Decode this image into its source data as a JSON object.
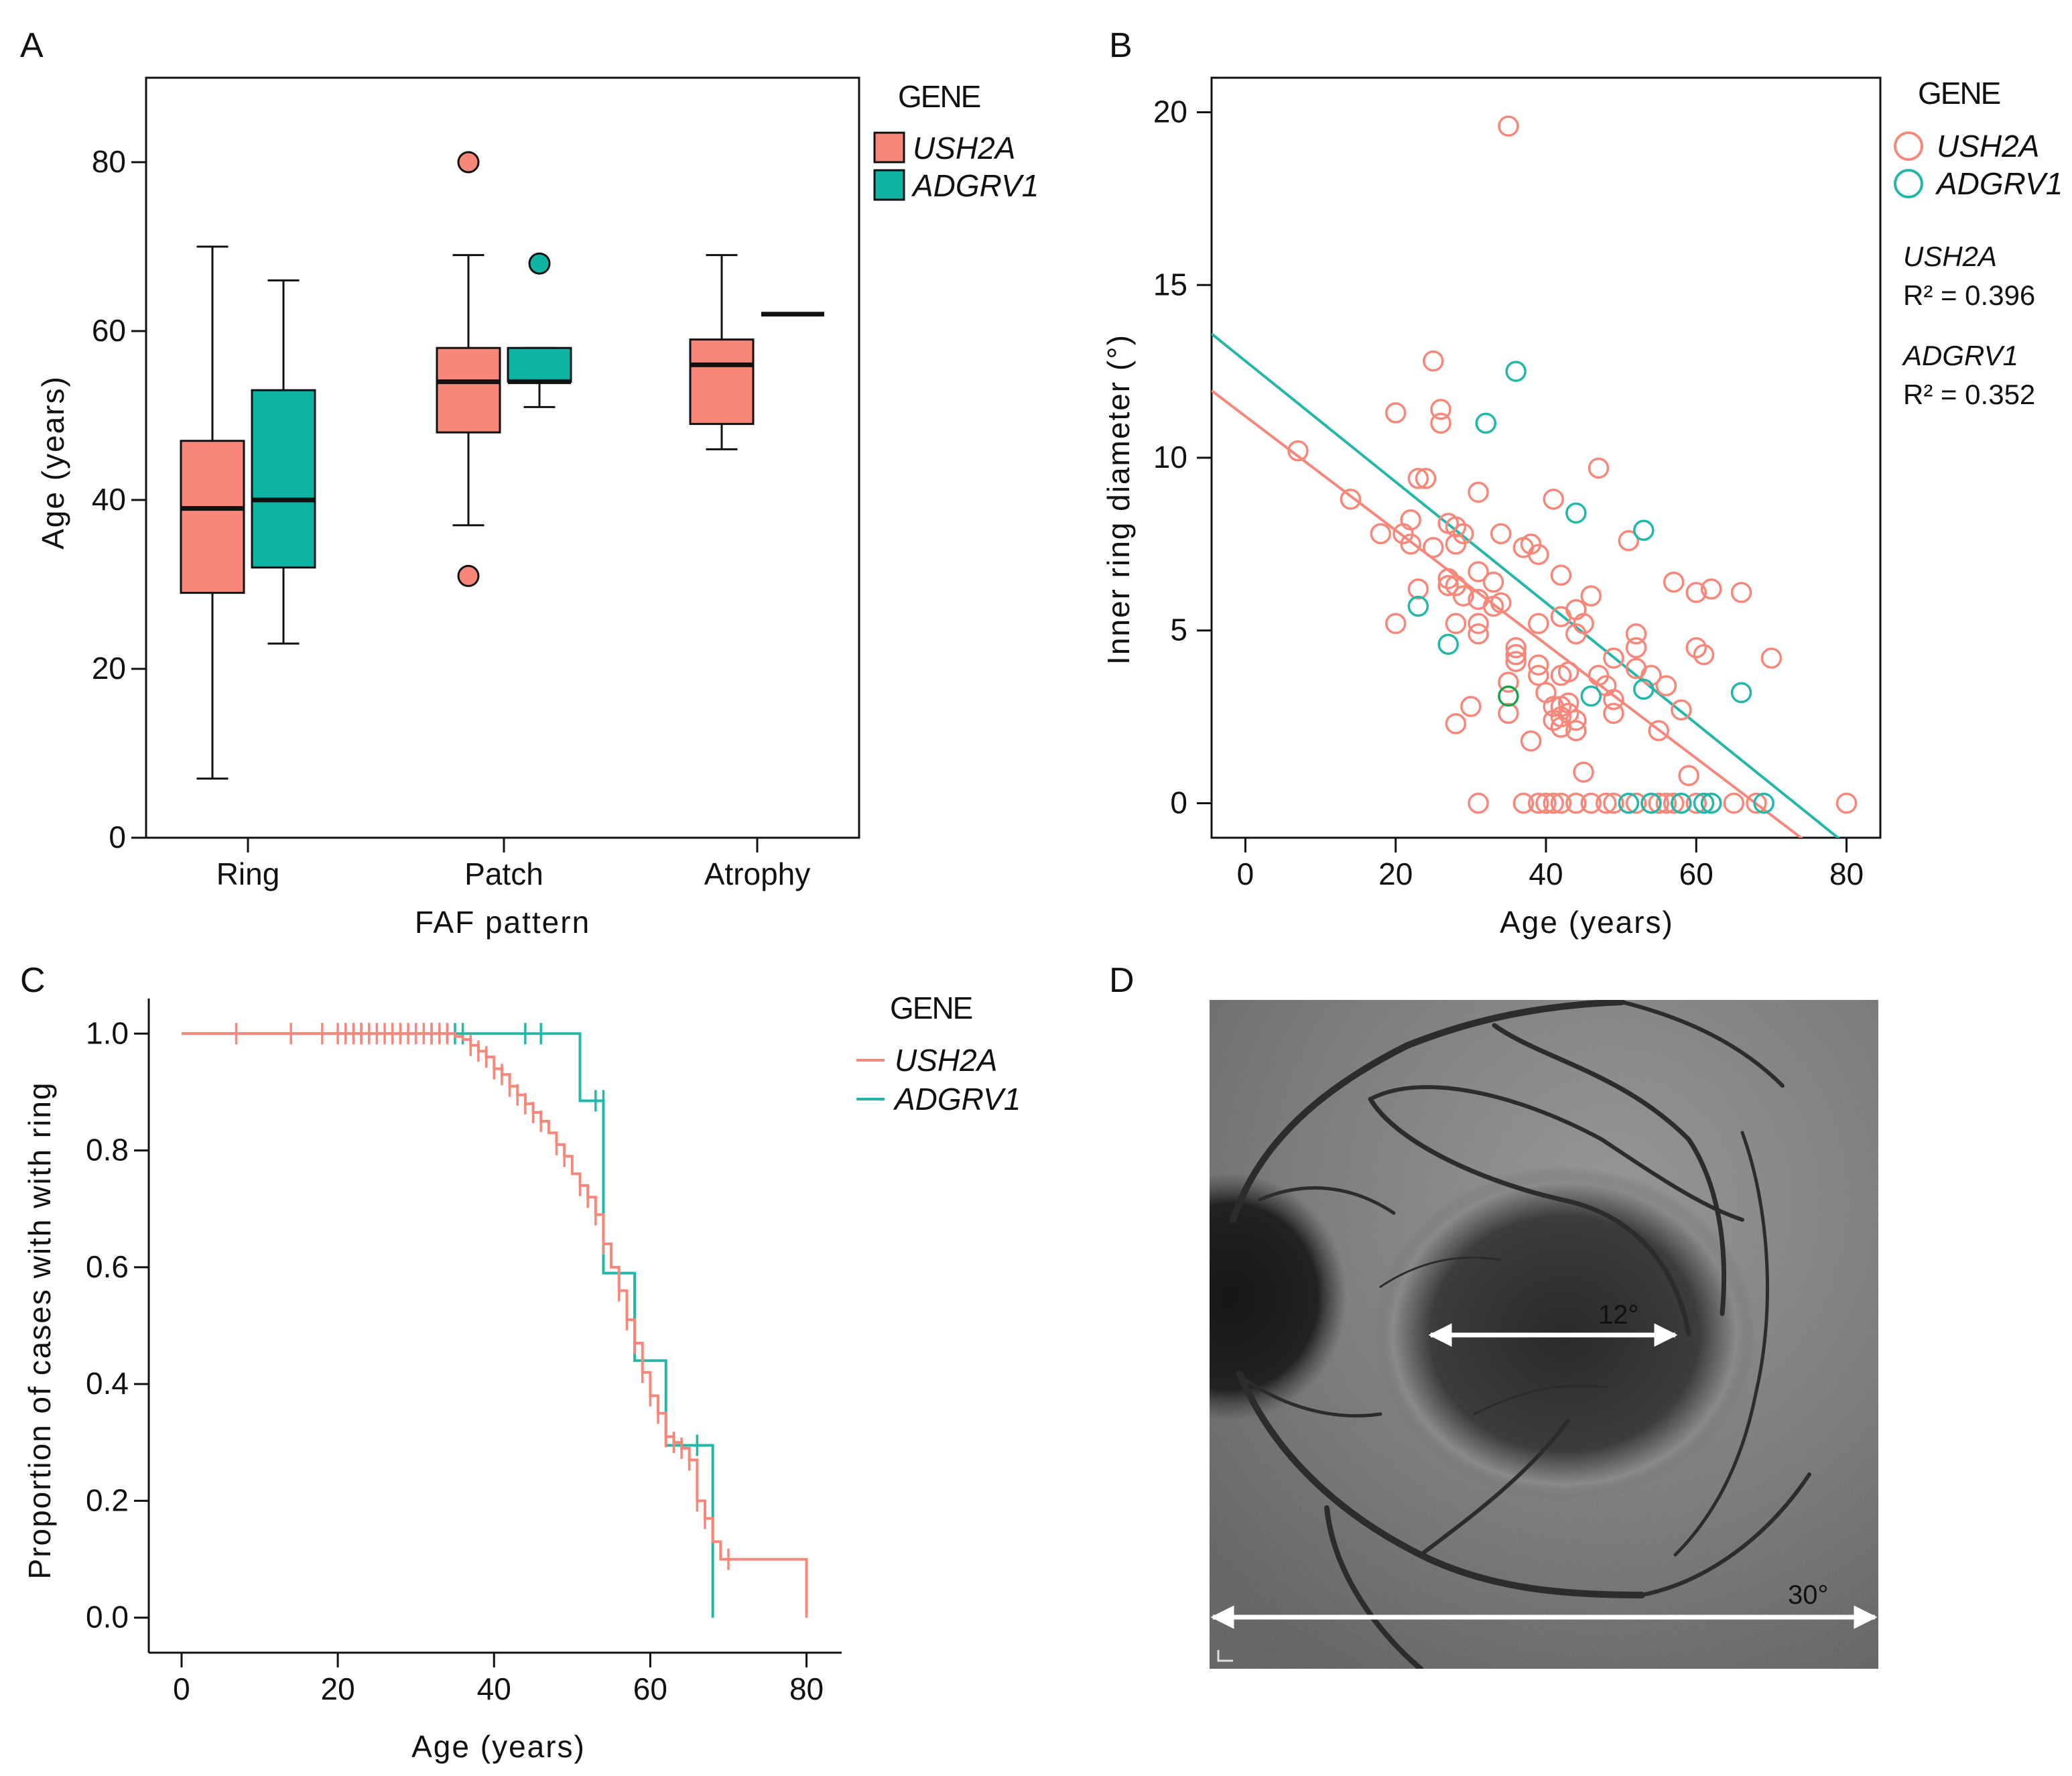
{
  "colors": {
    "ush2a": "#f8877a",
    "adgrv1": "#21b8aa",
    "adgrv1_box": "#0fb3a4",
    "outlier_green": "#1aa24a"
  },
  "panelA": {
    "letter": "A",
    "ylabel": "Age (years)",
    "xlabel": "FAF pattern",
    "yticks": [
      0,
      20,
      40,
      60,
      80
    ],
    "ylim": [
      0,
      90
    ],
    "categories": [
      "Ring",
      "Patch",
      "Atrophy"
    ],
    "legend_title": "GENE",
    "legend": [
      "USH2A",
      "ADGRV1"
    ]
  },
  "panelB": {
    "letter": "B",
    "ylabel": "Inner ring diameter (°)",
    "xlabel": "Age (years)",
    "xticks": [
      0,
      20,
      40,
      60,
      80
    ],
    "yticks": [
      0,
      5,
      10,
      15,
      20
    ],
    "xlim": [
      -4.5,
      84.5
    ],
    "ylim": [
      -1,
      21
    ],
    "legend_title": "GENE",
    "legend": [
      "USH2A",
      "ADGRV1"
    ],
    "stats": [
      {
        "gene": "USH2A",
        "r2": "R² = 0.396"
      },
      {
        "gene": "ADGRV1",
        "r2": "R² = 0.352"
      }
    ]
  },
  "panelC": {
    "letter": "C",
    "ylabel": "Proportion of cases with with ring",
    "xlabel": "Age (years)",
    "xticks": [
      0,
      20,
      40,
      60,
      80
    ],
    "yticks": [
      "0.0",
      "0.2",
      "0.4",
      "0.6",
      "0.8",
      "1.0"
    ],
    "legend_title": "GENE",
    "legend": [
      "USH2A",
      "ADGRV1"
    ]
  },
  "panelD": {
    "letter": "D",
    "inner_label": "12°",
    "outer_label": "30°"
  },
  "chart_data": [
    {
      "type": "box",
      "title": "",
      "xlabel": "FAF pattern",
      "ylabel": "Age (years)",
      "ylim": [
        0,
        90
      ],
      "categories": [
        "Ring",
        "Patch",
        "Atrophy"
      ],
      "series": [
        {
          "name": "USH2A",
          "boxes": [
            {
              "min": 7,
              "q1": 29,
              "median": 39,
              "q3": 47,
              "max": 70,
              "outliers": []
            },
            {
              "min": 37,
              "q1": 48,
              "median": 54,
              "q3": 58,
              "max": 69,
              "outliers": [
                80,
                31
              ]
            },
            {
              "min": 46,
              "q1": 49,
              "median": 56,
              "q3": 59,
              "max": 69,
              "outliers": []
            }
          ]
        },
        {
          "name": "ADGRV1",
          "boxes": [
            {
              "min": 23,
              "q1": 32,
              "median": 40,
              "q3": 53,
              "max": 66,
              "outliers": []
            },
            {
              "min": 51,
              "q1": 54,
              "median": 54,
              "q3": 58,
              "max": 58,
              "outliers": [
                68
              ]
            },
            {
              "min": 62,
              "q1": 62,
              "median": 62,
              "q3": 62,
              "max": 62,
              "outliers": []
            }
          ]
        }
      ]
    },
    {
      "type": "scatter",
      "title": "",
      "xlabel": "Age (years)",
      "ylabel": "Inner ring diameter (°)",
      "xlim": [
        -4.5,
        84.5
      ],
      "ylim": [
        -1,
        21
      ],
      "series": [
        {
          "name": "USH2A",
          "fit": {
            "intercept": 11.2,
            "slope": -0.165,
            "r2": 0.396
          },
          "points": [
            [
              7,
              10.2
            ],
            [
              14,
              8.8
            ],
            [
              18,
              7.8
            ],
            [
              20,
              11.3
            ],
            [
              20,
              5.2
            ],
            [
              21,
              7.8
            ],
            [
              22,
              7.5
            ],
            [
              22,
              8.2
            ],
            [
              23,
              9.4
            ],
            [
              23,
              6.2
            ],
            [
              24,
              9.4
            ],
            [
              25,
              12.8
            ],
            [
              25,
              7.4
            ],
            [
              26,
              11.4
            ],
            [
              26,
              11
            ],
            [
              27,
              8.1
            ],
            [
              27,
              6.5
            ],
            [
              27,
              6.3
            ],
            [
              28,
              8
            ],
            [
              28,
              7.5
            ],
            [
              28,
              6.3
            ],
            [
              28,
              5.2
            ],
            [
              28,
              2.3
            ],
            [
              29,
              7.8
            ],
            [
              29,
              6
            ],
            [
              30,
              2.8
            ],
            [
              31,
              9
            ],
            [
              31,
              6.7
            ],
            [
              31,
              5.9
            ],
            [
              31,
              5.2
            ],
            [
              31,
              4.9
            ],
            [
              31,
              0
            ],
            [
              33,
              6.4
            ],
            [
              33,
              5.7
            ],
            [
              34,
              7.8
            ],
            [
              34,
              5.8
            ],
            [
              35,
              19.6
            ],
            [
              35,
              2.6
            ],
            [
              35,
              3.5
            ],
            [
              36,
              4.5
            ],
            [
              36,
              4.3
            ],
            [
              36,
              4.1
            ],
            [
              37,
              7.4
            ],
            [
              37,
              0
            ],
            [
              38,
              7.5
            ],
            [
              38,
              1.8
            ],
            [
              39,
              7.2
            ],
            [
              39,
              5.2
            ],
            [
              39,
              4
            ],
            [
              39,
              3.7
            ],
            [
              39,
              0
            ],
            [
              40,
              3.2
            ],
            [
              40,
              0
            ],
            [
              41,
              8.8
            ],
            [
              41,
              2.8
            ],
            [
              41,
              2.4
            ],
            [
              41,
              0
            ],
            [
              42,
              6.6
            ],
            [
              42,
              5.4
            ],
            [
              42,
              3.7
            ],
            [
              42,
              2.8
            ],
            [
              42,
              2.5
            ],
            [
              42,
              2.2
            ],
            [
              42,
              0
            ],
            [
              43,
              3.8
            ],
            [
              43,
              2.9
            ],
            [
              43,
              2.6
            ],
            [
              44,
              5.6
            ],
            [
              44,
              4.9
            ],
            [
              44,
              2.4
            ],
            [
              44,
              2.1
            ],
            [
              44,
              0
            ],
            [
              45,
              5.2
            ],
            [
              45,
              0.9
            ],
            [
              46,
              6
            ],
            [
              46,
              0
            ],
            [
              47,
              9.7
            ],
            [
              47,
              3.7
            ],
            [
              48,
              3.4
            ],
            [
              48,
              0
            ],
            [
              49,
              4.2
            ],
            [
              49,
              3
            ],
            [
              49,
              2.6
            ],
            [
              49,
              0
            ],
            [
              51,
              7.6
            ],
            [
              52,
              4.9
            ],
            [
              52,
              3.9
            ],
            [
              52,
              4.5
            ],
            [
              52,
              0
            ],
            [
              54,
              3.7
            ],
            [
              54,
              0
            ],
            [
              55,
              2.1
            ],
            [
              55,
              0
            ],
            [
              56,
              3.4
            ],
            [
              56,
              0
            ],
            [
              57,
              6.4
            ],
            [
              57,
              0
            ],
            [
              58,
              2.7
            ],
            [
              58,
              0
            ],
            [
              59,
              0.8
            ],
            [
              60,
              6.1
            ],
            [
              60,
              4.5
            ],
            [
              60,
              0
            ],
            [
              61,
              4.3
            ],
            [
              62,
              6.2
            ],
            [
              62,
              0
            ],
            [
              65,
              0
            ],
            [
              66,
              6.1
            ],
            [
              68,
              0
            ],
            [
              70,
              4.2
            ],
            [
              80,
              0
            ]
          ]
        },
        {
          "name": "ADGRV1",
          "fit": {
            "intercept": 12.8,
            "slope": -0.175,
            "r2": 0.352
          },
          "points": [
            [
              23,
              5.7
            ],
            [
              27,
              4.6
            ],
            [
              32,
              11
            ],
            [
              36,
              12.5
            ],
            [
              44,
              8.4
            ],
            [
              46,
              3.1
            ],
            [
              51,
              0
            ],
            [
              53,
              7.9
            ],
            [
              53,
              3.3
            ],
            [
              54,
              0
            ],
            [
              58,
              0
            ],
            [
              61,
              0
            ],
            [
              62,
              0
            ],
            [
              66,
              3.2
            ],
            [
              69,
              0
            ]
          ]
        }
      ]
    },
    {
      "type": "line",
      "subtype": "kaplan-meier",
      "title": "",
      "xlabel": "Age (years)",
      "ylabel": "Proportion of cases with with ring",
      "xlim": [
        -4.2,
        84.5
      ],
      "ylim": [
        -0.06,
        1.06
      ],
      "series": [
        {
          "name": "USH2A",
          "steps": [
            [
              0,
              1
            ],
            [
              34,
              1
            ],
            [
              35,
              0.995
            ],
            [
              36,
              0.99
            ],
            [
              37,
              0.98
            ],
            [
              38,
              0.97
            ],
            [
              39,
              0.96
            ],
            [
              40,
              0.94
            ],
            [
              41,
              0.93
            ],
            [
              42,
              0.91
            ],
            [
              43,
              0.895
            ],
            [
              44,
              0.88
            ],
            [
              45,
              0.865
            ],
            [
              46,
              0.85
            ],
            [
              47,
              0.83
            ],
            [
              48,
              0.81
            ],
            [
              49,
              0.79
            ],
            [
              50,
              0.76
            ],
            [
              51,
              0.74
            ],
            [
              52,
              0.72
            ],
            [
              53,
              0.69
            ],
            [
              54,
              0.64
            ],
            [
              55,
              0.6
            ],
            [
              56,
              0.56
            ],
            [
              57,
              0.51
            ],
            [
              58,
              0.47
            ],
            [
              59,
              0.42
            ],
            [
              60,
              0.38
            ],
            [
              61,
              0.35
            ],
            [
              62,
              0.31
            ],
            [
              63,
              0.3
            ],
            [
              64,
              0.29
            ],
            [
              65,
              0.27
            ],
            [
              66,
              0.2
            ],
            [
              67,
              0.17
            ],
            [
              68,
              0.13
            ],
            [
              69,
              0.1
            ],
            [
              70,
              0.1
            ],
            [
              80,
              0.1
            ],
            [
              80,
              0
            ]
          ],
          "censors": [
            [
              7,
              1
            ],
            [
              14,
              1
            ],
            [
              18,
              1
            ],
            [
              20,
              1
            ],
            [
              21,
              1
            ],
            [
              22,
              1
            ],
            [
              23,
              1
            ],
            [
              24,
              1
            ],
            [
              25,
              1
            ],
            [
              26,
              1
            ],
            [
              27,
              1
            ],
            [
              28,
              1
            ],
            [
              29,
              1
            ],
            [
              30,
              1
            ],
            [
              31,
              1
            ],
            [
              32,
              1
            ],
            [
              33,
              1
            ],
            [
              34,
              1
            ],
            [
              37,
              0.98
            ],
            [
              38,
              0.97
            ],
            [
              39,
              0.96
            ],
            [
              40,
              0.94
            ],
            [
              41,
              0.93
            ],
            [
              42,
              0.91
            ],
            [
              43,
              0.895
            ],
            [
              44,
              0.88
            ],
            [
              45,
              0.865
            ],
            [
              46,
              0.85
            ],
            [
              48,
              0.81
            ],
            [
              49,
              0.79
            ],
            [
              51,
              0.74
            ],
            [
              52,
              0.72
            ],
            [
              53,
              0.69
            ],
            [
              54,
              0.64
            ],
            [
              56,
              0.56
            ],
            [
              57,
              0.51
            ],
            [
              58,
              0.47
            ],
            [
              59,
              0.42
            ],
            [
              60,
              0.38
            ],
            [
              61,
              0.35
            ],
            [
              62,
              0.31
            ],
            [
              63,
              0.3
            ],
            [
              64,
              0.29
            ],
            [
              65,
              0.27
            ],
            [
              66,
              0.2
            ],
            [
              67,
              0.17
            ],
            [
              70,
              0.1
            ]
          ]
        },
        {
          "name": "ADGRV1",
          "steps": [
            [
              0,
              1
            ],
            [
              51,
              1
            ],
            [
              51,
              0.885
            ],
            [
              54,
              0.885
            ],
            [
              54,
              0.59
            ],
            [
              58,
              0.59
            ],
            [
              58,
              0.44
            ],
            [
              62,
              0.44
            ],
            [
              62,
              0.295
            ],
            [
              68,
              0.295
            ],
            [
              68,
              0
            ]
          ],
          "censors": [
            [
              23,
              1
            ],
            [
              27,
              1
            ],
            [
              32,
              1
            ],
            [
              35,
              1
            ],
            [
              36,
              1
            ],
            [
              44,
              1
            ],
            [
              46,
              1
            ],
            [
              53,
              0.885
            ],
            [
              54,
              0.885
            ],
            [
              66,
              0.295
            ]
          ]
        }
      ]
    }
  ]
}
